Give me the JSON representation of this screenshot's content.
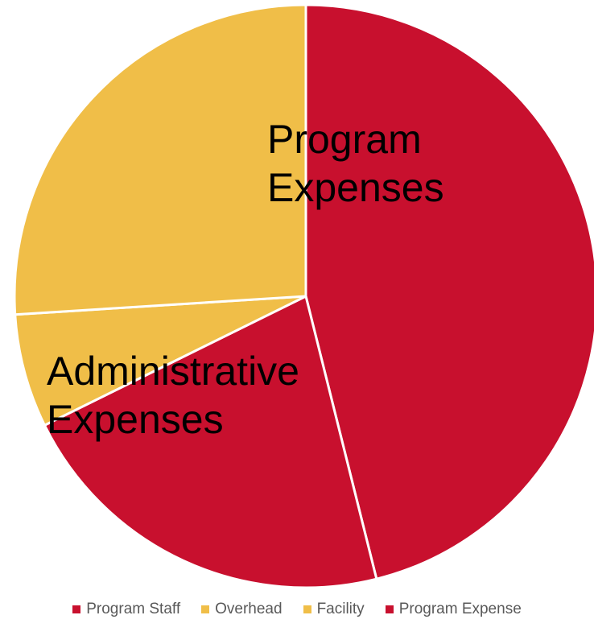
{
  "chart_data": {
    "type": "pie",
    "title": "",
    "slices": [
      {
        "name": "Program Expense",
        "value": 46.1,
        "color": "#C8102E"
      },
      {
        "name": "Program Staff",
        "value": 21.6,
        "color": "#C8102E"
      },
      {
        "name": "Overhead",
        "value": 6.3,
        "color": "#F0BE48"
      },
      {
        "name": "Facility",
        "value": 26.0,
        "color": "#F0BE48"
      }
    ],
    "slice_order_note": "clockwise from 12 o'clock",
    "annotations": [
      {
        "lines": [
          "Program",
          "Expenses"
        ]
      },
      {
        "lines": [
          "Administrative",
          "Expenses"
        ]
      }
    ],
    "legend": {
      "position": "bottom",
      "entries": [
        {
          "label": "Program Staff",
          "color": "#C8102E"
        },
        {
          "label": "Overhead",
          "color": "#F0BE48"
        },
        {
          "label": "Facility",
          "color": "#F0BE48"
        },
        {
          "label": "Program Expense",
          "color": "#C8102E"
        }
      ]
    }
  }
}
